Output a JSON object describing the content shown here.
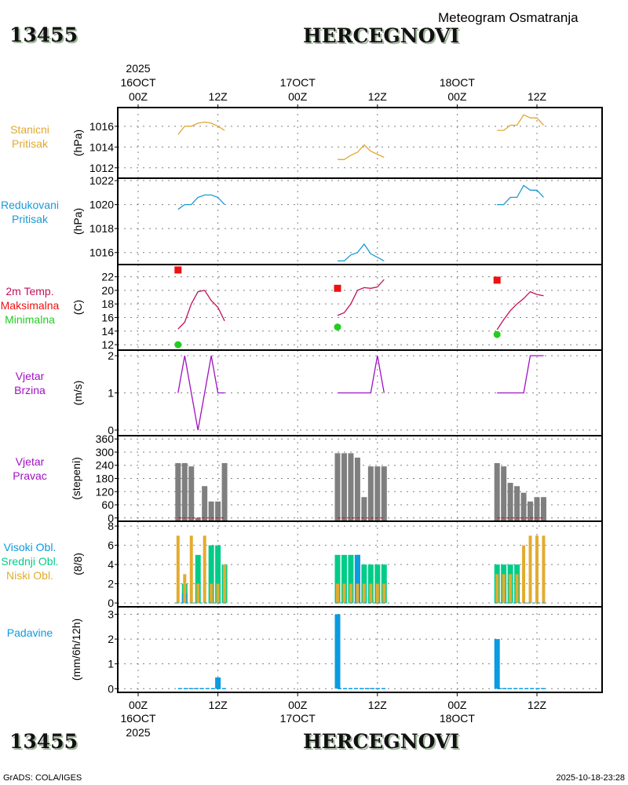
{
  "header": {
    "station_id": "13455",
    "station_name": "HERCEGNOVI",
    "subtitle": "Meteogram Osmatranja"
  },
  "footer": {
    "left": "GrADS: COLA/IGES",
    "right": "2025-10-18-23:28"
  },
  "time_axis": {
    "year": "2025",
    "ticks": [
      {
        "hour": 0,
        "label": "00Z",
        "date": "16OCT"
      },
      {
        "hour": 12,
        "label": "12Z",
        "date": ""
      },
      {
        "hour": 24,
        "label": "00Z",
        "date": "17OCT"
      },
      {
        "hour": 36,
        "label": "12Z",
        "date": ""
      },
      {
        "hour": 48,
        "label": "00Z",
        "date": "18OCT"
      },
      {
        "hour": 60,
        "label": "12Z",
        "date": ""
      }
    ],
    "range_hours": [
      -3,
      70
    ]
  },
  "colors": {
    "stanicni": "#e0a830",
    "redukovani": "#1a9ad6",
    "temp": "#c0105a",
    "max": "#ee1111",
    "min": "#22cc22",
    "wind": "#a010c0",
    "winddir": "#7f7f7f",
    "winddir_zero": "#dd1111",
    "cloud_high": "#0a9be0",
    "cloud_mid": "#00cc88",
    "cloud_low": "#e3ab2f",
    "precip": "#0a9be0"
  },
  "chart_data": [
    {
      "type": "line",
      "panel": "stanicni",
      "title_lines": [
        "Stanicni",
        "Pritisak"
      ],
      "ylabel": "(hPa)",
      "ylim": [
        1011,
        1017.8
      ],
      "yticks": [
        1012,
        1014,
        1016
      ],
      "series": [
        {
          "name": "Stanicni Pritisak",
          "x": [
            6,
            7,
            8,
            9,
            10,
            11,
            12,
            13,
            30,
            31,
            32,
            33,
            34,
            35,
            36,
            37,
            54,
            55,
            56,
            57,
            58,
            59,
            60,
            61
          ],
          "segments": [
            [
              [
                6,
                1015.2
              ],
              [
                7,
                1016.0
              ],
              [
                8,
                1016.0
              ],
              [
                9,
                1016.3
              ],
              [
                10,
                1016.4
              ],
              [
                11,
                1016.3
              ],
              [
                12,
                1016.0
              ],
              [
                13,
                1015.6
              ]
            ],
            [
              [
                30,
                1012.8
              ],
              [
                31,
                1012.8
              ],
              [
                32,
                1013.2
              ],
              [
                33,
                1013.5
              ],
              [
                34,
                1014.2
              ],
              [
                35,
                1013.6
              ],
              [
                36,
                1013.3
              ],
              [
                37,
                1013.0
              ]
            ],
            [
              [
                54,
                1015.6
              ],
              [
                55,
                1015.6
              ],
              [
                56,
                1016.1
              ],
              [
                57,
                1016.1
              ],
              [
                58,
                1017.1
              ],
              [
                59,
                1016.8
              ],
              [
                60,
                1016.8
              ],
              [
                61,
                1016.1
              ]
            ]
          ]
        }
      ]
    },
    {
      "type": "line",
      "panel": "redukovani",
      "title_lines": [
        "Redukovani",
        "Pritisak"
      ],
      "ylabel": "(hPa)",
      "ylim": [
        1015,
        1022.2
      ],
      "yticks": [
        1016,
        1018,
        1020,
        1022
      ],
      "series": [
        {
          "name": "Redukovani Pritisak",
          "segments": [
            [
              [
                6,
                1019.6
              ],
              [
                7,
                1020.0
              ],
              [
                8,
                1020.0
              ],
              [
                9,
                1020.6
              ],
              [
                10,
                1020.8
              ],
              [
                11,
                1020.8
              ],
              [
                12,
                1020.6
              ],
              [
                13,
                1020.0
              ]
            ],
            [
              [
                30,
                1015.3
              ],
              [
                31,
                1015.3
              ],
              [
                32,
                1015.8
              ],
              [
                33,
                1016.0
              ],
              [
                34,
                1016.7
              ],
              [
                35,
                1015.9
              ],
              [
                36,
                1015.6
              ],
              [
                37,
                1015.3
              ]
            ],
            [
              [
                54,
                1020.0
              ],
              [
                55,
                1020.0
              ],
              [
                56,
                1020.6
              ],
              [
                57,
                1020.6
              ],
              [
                58,
                1021.6
              ],
              [
                59,
                1021.2
              ],
              [
                60,
                1021.2
              ],
              [
                61,
                1020.6
              ]
            ]
          ]
        }
      ]
    },
    {
      "type": "line",
      "panel": "temperature",
      "title_lines": [
        "2m Temp.",
        "Maksimalna",
        "Minimalna"
      ],
      "ylabel": "(C)",
      "ylim": [
        11.2,
        23.8
      ],
      "yticks": [
        12,
        14,
        16,
        18,
        20,
        22
      ],
      "series": [
        {
          "name": "2m Temp.",
          "segments": [
            [
              [
                6,
                14.3
              ],
              [
                7,
                15.3
              ],
              [
                8,
                18.0
              ],
              [
                9,
                19.8
              ],
              [
                10,
                20.0
              ],
              [
                11,
                18.5
              ],
              [
                12,
                17.5
              ],
              [
                13,
                15.5
              ]
            ],
            [
              [
                30,
                16.3
              ],
              [
                31,
                16.7
              ],
              [
                32,
                18.0
              ],
              [
                33,
                20.0
              ],
              [
                34,
                20.4
              ],
              [
                35,
                20.3
              ],
              [
                36,
                20.5
              ],
              [
                37,
                21.6
              ]
            ],
            [
              [
                54,
                14.2
              ],
              [
                55,
                15.7
              ],
              [
                56,
                17.0
              ],
              [
                57,
                18.0
              ],
              [
                58,
                18.8
              ],
              [
                59,
                19.8
              ],
              [
                60,
                19.4
              ],
              [
                61,
                19.2
              ]
            ]
          ]
        },
        {
          "name": "Maksimalna",
          "points": [
            [
              6,
              23.0
            ],
            [
              30,
              20.3
            ],
            [
              54,
              21.5
            ]
          ]
        },
        {
          "name": "Minimalna",
          "points": [
            [
              6,
              12.0
            ],
            [
              30,
              14.6
            ],
            [
              54,
              13.5
            ]
          ]
        }
      ]
    },
    {
      "type": "line",
      "panel": "wind_speed",
      "title_lines": [
        "Vjetar",
        "Brzina"
      ],
      "ylabel": "(m/s)",
      "ylim": [
        -0.15,
        2.15
      ],
      "yticks": [
        0,
        1,
        2
      ],
      "series": [
        {
          "name": "Vjetar Brzina",
          "segments": [
            [
              [
                6,
                1
              ],
              [
                7,
                2
              ],
              [
                8,
                1
              ],
              [
                9,
                0
              ],
              [
                10,
                1
              ],
              [
                11,
                2
              ],
              [
                12,
                1
              ],
              [
                13,
                1
              ]
            ],
            [
              [
                30,
                1
              ],
              [
                31,
                1
              ],
              [
                32,
                1
              ],
              [
                33,
                1
              ],
              [
                34,
                1
              ],
              [
                35,
                1
              ],
              [
                36,
                2
              ],
              [
                37,
                1
              ]
            ],
            [
              [
                54,
                1
              ],
              [
                55,
                1
              ],
              [
                56,
                1
              ],
              [
                57,
                1
              ],
              [
                58,
                1
              ],
              [
                59,
                2
              ],
              [
                60,
                2
              ],
              [
                61,
                2
              ]
            ]
          ]
        }
      ]
    },
    {
      "type": "bar",
      "panel": "wind_direction",
      "title_lines": [
        "Vjetar",
        "Pravac"
      ],
      "ylabel": "(stepeni)",
      "ylim": [
        -15,
        375
      ],
      "yticks": [
        0,
        60,
        120,
        180,
        240,
        300,
        360
      ],
      "series": [
        {
          "name": "Vjetar Pravac",
          "x": [
            6,
            7,
            8,
            9,
            10,
            11,
            12,
            13,
            30,
            31,
            32,
            33,
            34,
            35,
            36,
            37,
            54,
            55,
            56,
            57,
            58,
            59,
            60,
            61
          ],
          "values": [
            250,
            250,
            235,
            0,
            145,
            75,
            75,
            250,
            295,
            295,
            295,
            275,
            95,
            235,
            235,
            235,
            250,
            235,
            160,
            145,
            115,
            75,
            95,
            95
          ]
        }
      ]
    },
    {
      "type": "bar",
      "panel": "clouds",
      "title_lines": [
        "Visoki Obl.",
        "Srednji Obl.",
        "Niski Obl."
      ],
      "ylabel": "(8/8)",
      "ylim": [
        -0.4,
        8.5
      ],
      "yticks": [
        0,
        2,
        4,
        6,
        8
      ],
      "x": [
        6,
        7,
        8,
        9,
        10,
        11,
        12,
        13,
        30,
        31,
        32,
        33,
        34,
        35,
        36,
        37,
        54,
        55,
        56,
        57,
        58,
        59,
        60,
        61
      ],
      "series": [
        {
          "name": "Visoki Obl.",
          "values": [
            0,
            1,
            0,
            0,
            0,
            0,
            0,
            0,
            0,
            0,
            0,
            5,
            0,
            0,
            0,
            0,
            0,
            0,
            0,
            0,
            0,
            0,
            0,
            0
          ]
        },
        {
          "name": "Srednji Obl.",
          "values": [
            0,
            2,
            0,
            5,
            0,
            6,
            6,
            4,
            5,
            5,
            5,
            5,
            4,
            4,
            4,
            4,
            4,
            4,
            4,
            4,
            0,
            0,
            0,
            0
          ]
        },
        {
          "name": "Niski Obl.",
          "values": [
            7,
            3,
            7,
            2,
            7,
            2,
            2,
            4,
            2,
            2,
            2,
            2,
            2,
            2,
            2,
            2,
            3,
            3,
            3,
            3,
            6,
            7,
            7,
            7
          ]
        }
      ]
    },
    {
      "type": "bar",
      "panel": "precipitation",
      "title_lines": [
        "Padavine"
      ],
      "ylabel": "(mm/6h/12h)",
      "ylim": [
        -0.15,
        3.3
      ],
      "yticks": [
        0,
        1,
        2,
        3
      ],
      "series": [
        {
          "name": "Padavine",
          "x": [
            6,
            7,
            8,
            9,
            10,
            11,
            12,
            13,
            30,
            31,
            32,
            33,
            34,
            35,
            36,
            37,
            54,
            55,
            56,
            57,
            58,
            59,
            60,
            61
          ],
          "values": [
            0,
            0,
            0,
            0,
            0,
            0,
            0.45,
            0,
            3.0,
            0,
            0,
            0,
            0,
            0,
            0,
            0,
            2.0,
            0,
            0,
            0,
            0,
            0,
            0,
            0
          ]
        }
      ]
    }
  ]
}
